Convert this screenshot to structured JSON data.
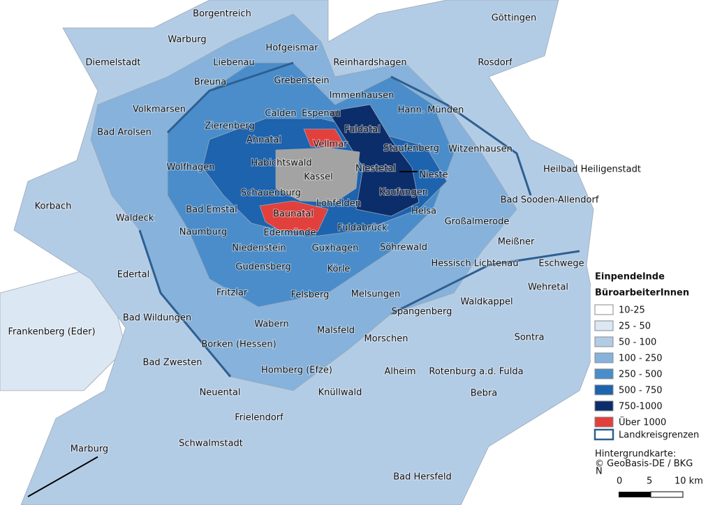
{
  "places": [
    "Borgentreich",
    "Göttingen",
    "Warburg",
    "Hofgeismar",
    "Diemelstadt",
    "Liebenau",
    "Reinhardshagen",
    "Rosdorf",
    "Breuna",
    "Grebenstein",
    "Immenhausen",
    "Volkmarsen",
    "Calden",
    "Espenau",
    "Hann. Münden",
    "Bad Arolsen",
    "Zierenberg",
    "Fuldatal",
    "Ahnatal",
    "Vellmar",
    "Staufenberg",
    "Witzenhausen",
    "Habichtswald",
    "Wolfhagen",
    "Kassel",
    "Niestetal",
    "Nieste",
    "Heilbad Heiligenstadt",
    "Schauenburg",
    "Kaufungen",
    "Bad Sooden-Allendorf",
    "Korbach",
    "Bad Emstal",
    "Lohfelden",
    "Helsa",
    "Waldeck",
    "Baunatal",
    "Großalmerode",
    "Naumburg",
    "Edermünde",
    "Fuldabrück",
    "Meißner",
    "Niedenstein",
    "Guxhagen",
    "Söhrewald",
    "Hessisch Lichtenau",
    "Eschwege",
    "Gudensberg",
    "Körle",
    "Edertal",
    "Wehretal",
    "Fritzlar",
    "Felsberg",
    "Melsungen",
    "Spangenberg",
    "Waldkappel",
    "Bad Wildungen",
    "Wabern",
    "Malsfeld",
    "Frankenberg (Eder)",
    "Sontra",
    "Morschen",
    "Borken (Hessen)",
    "Bad Zwesten",
    "Alheim",
    "Rotenburg a.d. Fulda",
    "Homberg (Efze)",
    "Neuental",
    "Knüllwald",
    "Bebra",
    "Frielendorf",
    "Schwalmstadt",
    "Marburg",
    "Bad Hersfeld"
  ],
  "legend": {
    "title": [
      "Einpendelnde",
      "BüroarbeiterInnen"
    ],
    "items": [
      {
        "label": "10-25",
        "color": "#ffffff"
      },
      {
        "label": "25 - 50",
        "color": "#dce7f4"
      },
      {
        "label": "50 - 100",
        "color": "#b3cce6"
      },
      {
        "label": "100 - 250",
        "color": "#86b2db"
      },
      {
        "label": "250 - 500",
        "color": "#4a8dca"
      },
      {
        "label": "500 - 750",
        "color": "#1d63ae"
      },
      {
        "label": "750-1000",
        "color": "#0b2d6a"
      },
      {
        "label": "Über 1000",
        "color": "#e2403d"
      }
    ],
    "boundary": "Landkreisgrenzen"
  },
  "attribution": [
    "Hintergrundkarte:",
    "© GeoBasis-DE / BKG"
  ],
  "scale": {
    "north": "N",
    "labels": [
      "0",
      "5",
      "10 km"
    ]
  }
}
